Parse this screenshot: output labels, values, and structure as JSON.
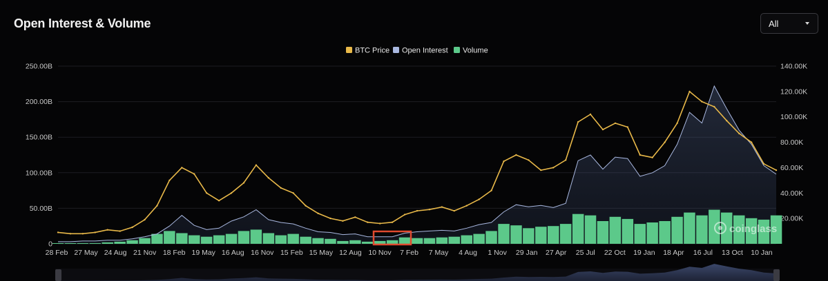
{
  "header": {
    "title": "Open Interest & Volume",
    "range_select": {
      "value": "All"
    }
  },
  "watermark": "coinglass",
  "icons": {
    "dropdown": "chevron-down-icon",
    "watermark": "coinglass-logo-icon"
  },
  "colors": {
    "btc_price": "#E9B949",
    "open_interest": "#A9B8E0",
    "volume": "#5CC98A",
    "background": "#050506",
    "highlight_box": "#E04A2F"
  },
  "chart_data": {
    "type": "line",
    "title": "Open Interest & Volume",
    "legend": [
      "BTC Price",
      "Open Interest",
      "Volume"
    ],
    "legend_position": "top-center",
    "grid": true,
    "x_tick_labels": [
      "28 Feb",
      "27 May",
      "24 Aug",
      "21 Nov",
      "18 Feb",
      "19 May",
      "16 Aug",
      "16 Nov",
      "15 Feb",
      "15 May",
      "12 Aug",
      "10 Nov",
      "7 Feb",
      "7 May",
      "4 Aug",
      "1 Nov",
      "29 Jan",
      "27 Apr",
      "25 Jul",
      "22 Oct",
      "19 Jan",
      "18 Apr",
      "16 Jul",
      "13 Oct",
      "10 Jan"
    ],
    "y_left": {
      "label": "",
      "ylim": [
        0,
        250
      ],
      "tick_labels": [
        "0",
        "50.00B",
        "100.00B",
        "150.00B",
        "200.00B",
        "250.00B"
      ]
    },
    "y_right": {
      "label": "",
      "ylim": [
        0,
        140
      ],
      "tick_labels": [
        "20.00K",
        "40.00K",
        "60.00K",
        "80.00K",
        "100.00K",
        "120.00K",
        "140.00K"
      ]
    },
    "series": [
      {
        "name": "BTC Price",
        "axis": "right",
        "unit": "K",
        "values": [
          9,
          8,
          8,
          9,
          11,
          10,
          13,
          19,
          30,
          50,
          60,
          55,
          40,
          34,
          40,
          48,
          62,
          52,
          44,
          40,
          30,
          24,
          20,
          18,
          21,
          17,
          16,
          17,
          23,
          26,
          27,
          29,
          26,
          30,
          35,
          42,
          65,
          70,
          66,
          58,
          60,
          66,
          96,
          102,
          90,
          95,
          92,
          70,
          68,
          80,
          95,
          120,
          112,
          108,
          97,
          87,
          80,
          63,
          58
        ]
      },
      {
        "name": "Open Interest",
        "axis": "left",
        "unit": "B",
        "values": [
          3,
          3,
          4,
          4,
          5,
          5,
          7,
          10,
          14,
          25,
          40,
          26,
          20,
          22,
          32,
          38,
          48,
          34,
          30,
          28,
          22,
          17,
          16,
          13,
          14,
          10,
          10,
          10,
          15,
          17,
          18,
          19,
          18,
          22,
          27,
          30,
          45,
          55,
          52,
          54,
          51,
          57,
          117,
          125,
          105,
          122,
          120,
          95,
          100,
          110,
          140,
          185,
          170,
          222,
          190,
          160,
          140,
          110,
          98
        ]
      },
      {
        "name": "Volume",
        "axis": "left",
        "unit": "B",
        "values": [
          1,
          1,
          1,
          1,
          2,
          3,
          5,
          8,
          14,
          18,
          15,
          12,
          10,
          12,
          14,
          18,
          20,
          15,
          12,
          14,
          10,
          8,
          7,
          4,
          5,
          3,
          4,
          5,
          9,
          8,
          8,
          9,
          10,
          12,
          14,
          18,
          28,
          26,
          22,
          24,
          25,
          28,
          42,
          40,
          32,
          38,
          35,
          28,
          30,
          32,
          38,
          44,
          40,
          48,
          44,
          40,
          36,
          34,
          40
        ]
      }
    ]
  }
}
